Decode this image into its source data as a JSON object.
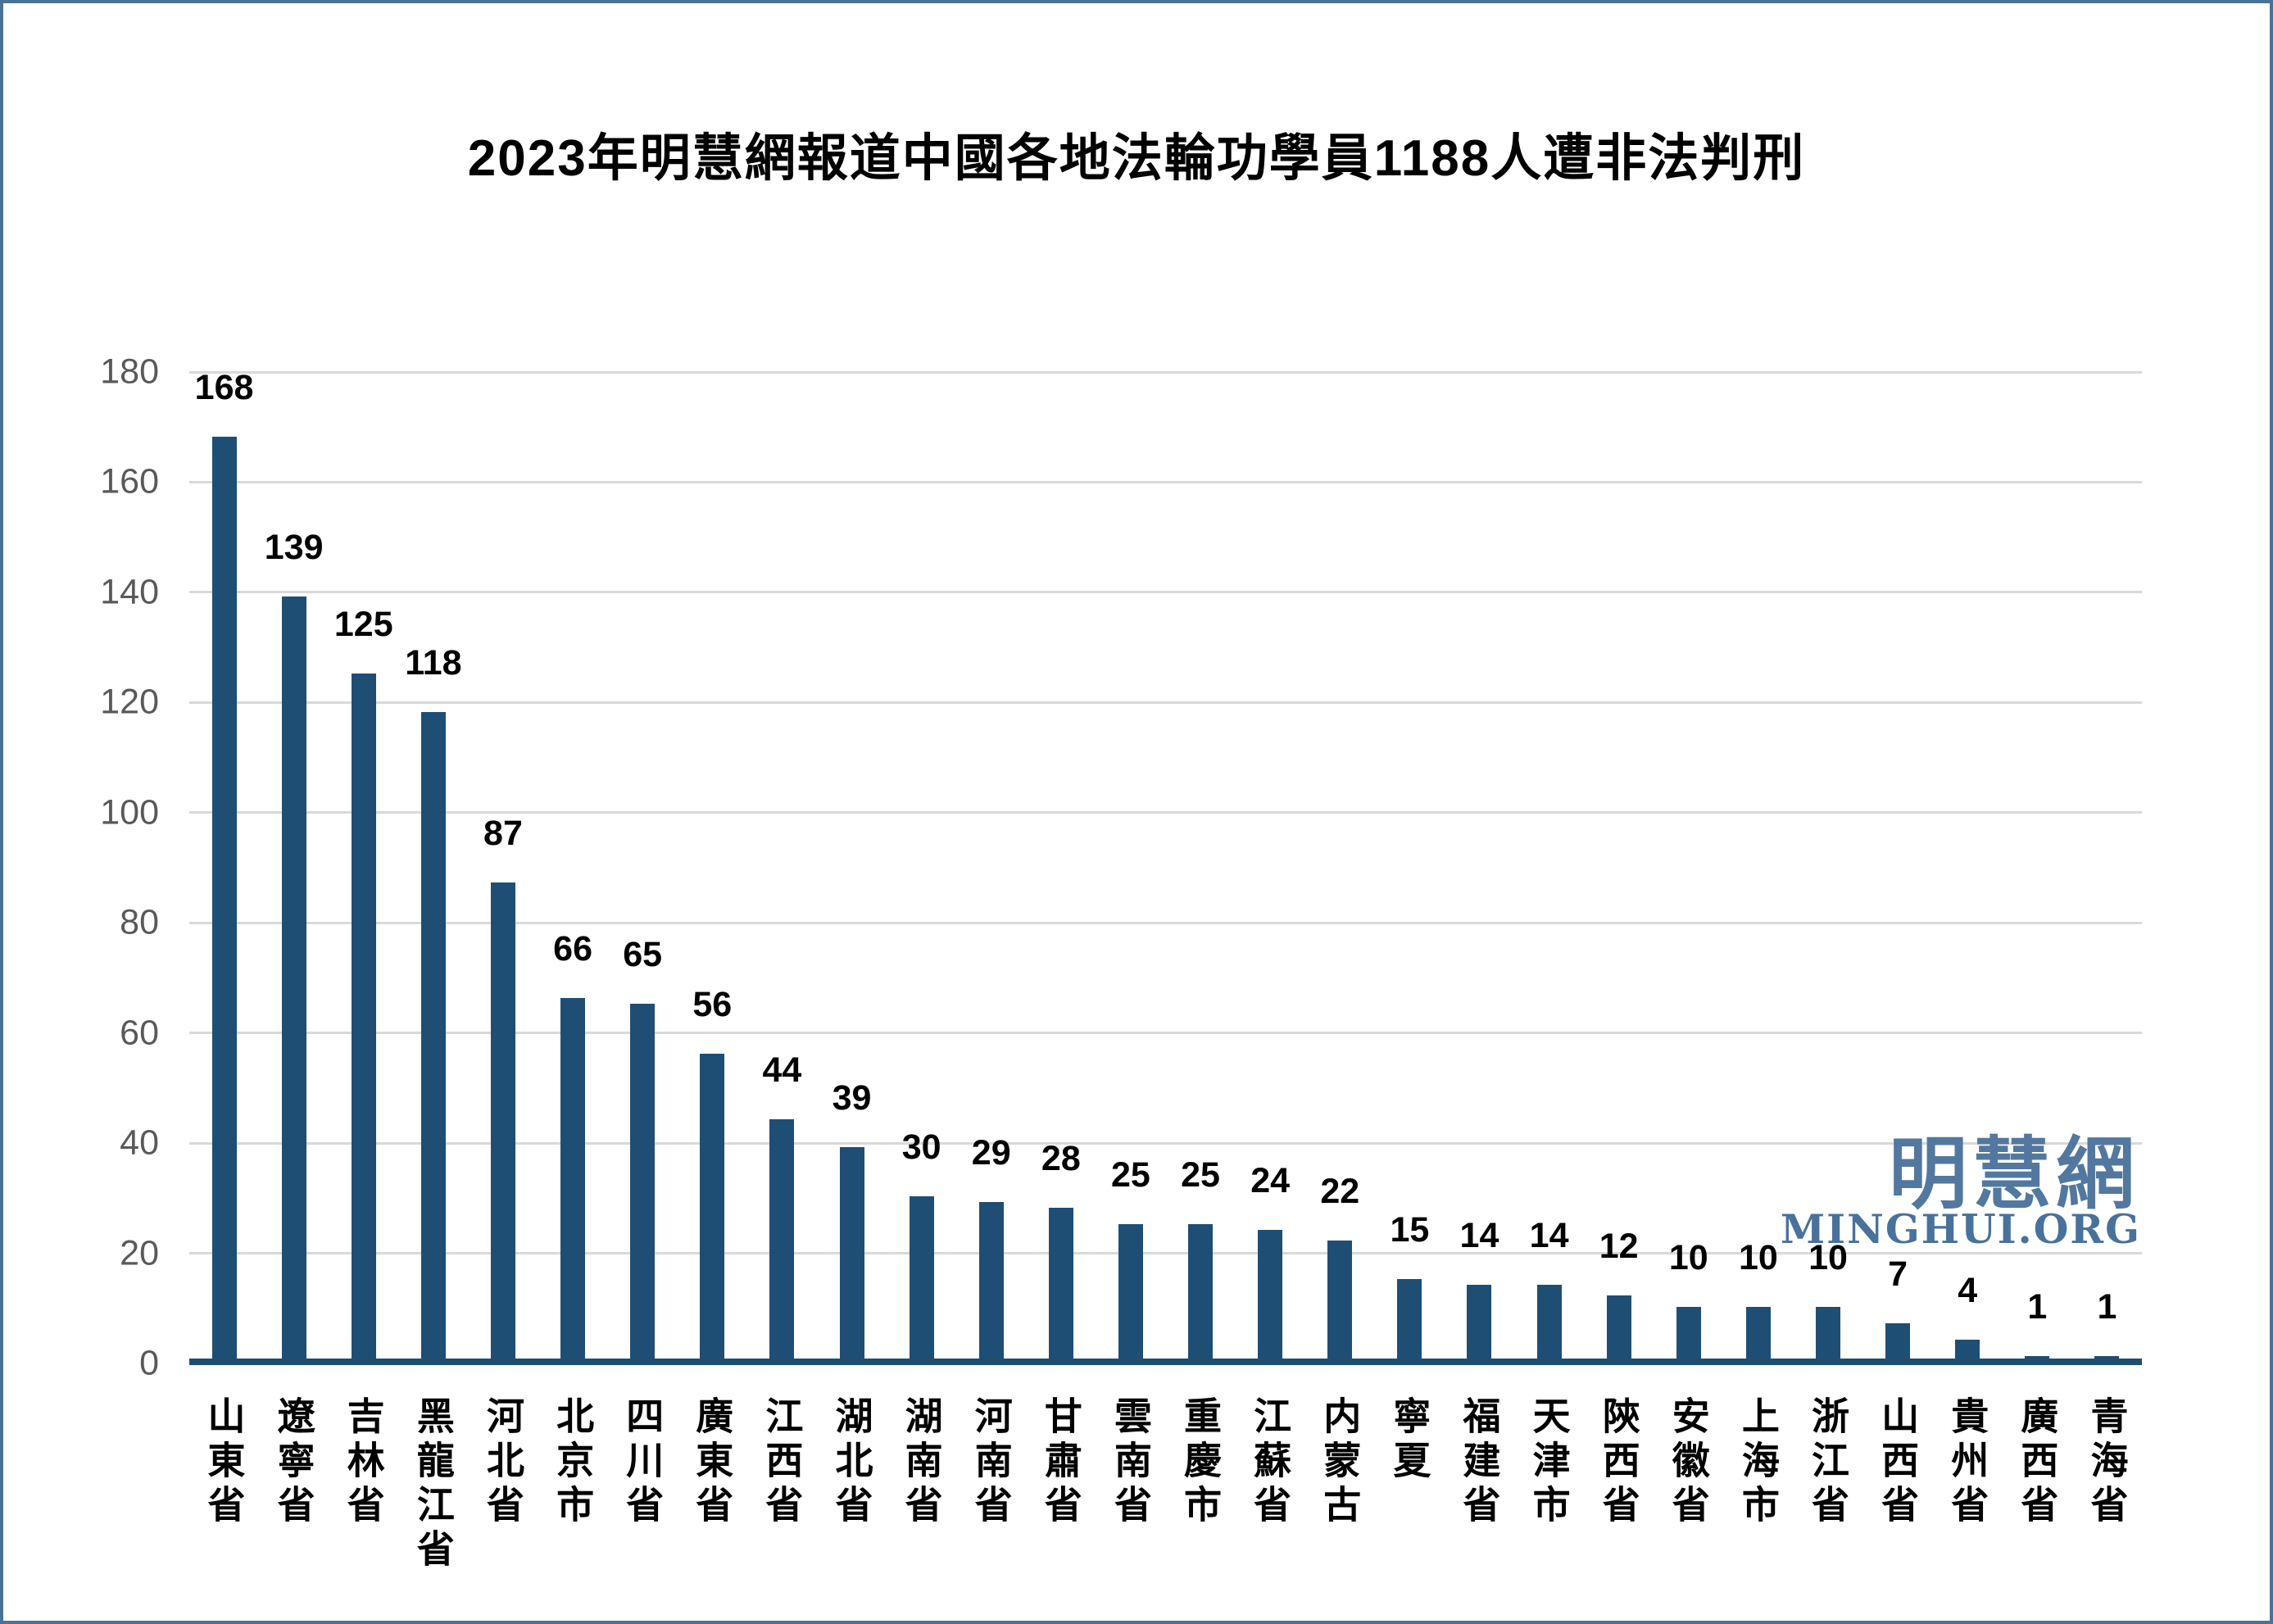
{
  "frame": {
    "border_color": "#4a7296",
    "background": "#ffffff"
  },
  "title": {
    "text": "2023年明慧網報道中國各地法輪功學員1188人遭非法判刑",
    "color": "#000000"
  },
  "watermark": {
    "cjk": "明慧網",
    "latin": "MINGHUI.ORG",
    "cjk_color": "#52789f",
    "latin_color": "#48719b"
  },
  "chart_data": {
    "type": "bar",
    "title": "2023年明慧網報道中國各地法輪功學員1188人遭非法判刑",
    "categories": [
      "山東省",
      "遼寧省",
      "吉林省",
      "黑龍江省",
      "河北省",
      "北京市",
      "四川省",
      "廣東省",
      "江西省",
      "湖北省",
      "湖南省",
      "河南省",
      "甘肅省",
      "雲南省",
      "重慶市",
      "江蘇省",
      "内蒙古",
      "寧夏",
      "福建省",
      "天津市",
      "陝西省",
      "安徽省",
      "上海市",
      "浙江省",
      "山西省",
      "貴州省",
      "廣西省",
      "青海省"
    ],
    "values": [
      168,
      139,
      125,
      118,
      87,
      66,
      65,
      56,
      44,
      39,
      30,
      29,
      28,
      25,
      25,
      24,
      22,
      15,
      14,
      14,
      12,
      10,
      10,
      10,
      7,
      4,
      1,
      1
    ],
    "xlabel": "",
    "ylabel": "",
    "ylim": [
      0,
      180
    ],
    "y_ticks": [
      0,
      20,
      40,
      60,
      80,
      100,
      120,
      140,
      160,
      180
    ],
    "grid": true,
    "legend_position": "none",
    "bar_color": "#1f4e75",
    "axis_color": "#1f4e75",
    "gridline_color": "#d9d9d9",
    "y_tick_label_color": "#595959",
    "value_label_color": "#000000",
    "x_tick_label_color": "#000000"
  }
}
